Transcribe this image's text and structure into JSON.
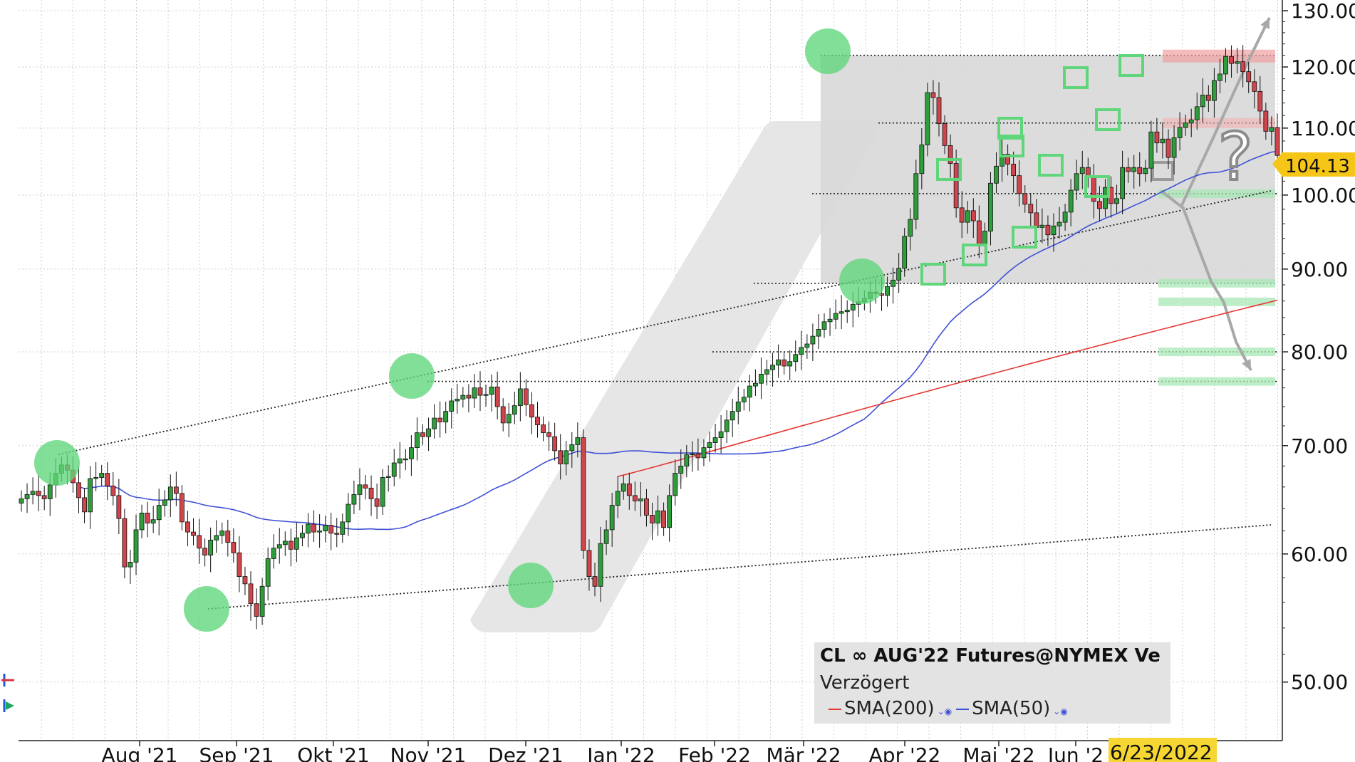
{
  "chart_data": {
    "type": "candlestick",
    "title": "CL ∞ AUG'22 Futures@NYMEX Ve",
    "subtitle": "Verzögert",
    "x_labels": [
      "Aug '21",
      "Sep '21",
      "Okt '21",
      "Nov '21",
      "Dez '21",
      "Jan '22",
      "Feb '22",
      "Mär '22",
      "Apr '22",
      "Mai '22",
      "Jun '2"
    ],
    "date_badge": "6/23/2022",
    "y_ticks": [
      "130.00",
      "120.00",
      "110.00",
      "100.00",
      "90.00",
      "80.00",
      "70.00",
      "60.00",
      "50.00"
    ],
    "y_scale": "log",
    "ylim": [
      46,
      132
    ],
    "last_price": "104.13",
    "legend": [
      {
        "name": "SMA(200)",
        "color": "#e53935"
      },
      {
        "name": "SMA(50)",
        "color": "#3f51d6"
      }
    ],
    "question_mark": "?",
    "colors": {
      "up": "#2e9e3a",
      "down": "#d0454c",
      "sma50": "#3f51d6",
      "sma200": "#e53935",
      "marker": "#5fd67a",
      "price_badge": "#f5c518",
      "date_badge": "#f5d632"
    },
    "closes": [
      64.9,
      65.3,
      65.6,
      65.2,
      64.9,
      66.2,
      67.3,
      68.1,
      67.6,
      66.4,
      65.0,
      63.7,
      66.8,
      66.9,
      67.3,
      66.1,
      65.2,
      63.1,
      58.9,
      59.3,
      62.1,
      63.6,
      62.7,
      63.0,
      64.3,
      64.8,
      66.0,
      65.4,
      62.8,
      61.9,
      61.6,
      60.5,
      59.9,
      61.2,
      61.6,
      62.0,
      61.0,
      60.1,
      58.1,
      57.5,
      55.9,
      54.9,
      57.3,
      59.6,
      60.5,
      60.8,
      61.1,
      60.4,
      61.4,
      61.8,
      62.6,
      61.9,
      62.0,
      62.5,
      61.8,
      61.7,
      62.8,
      64.4,
      65.3,
      66.2,
      65.9,
      64.9,
      64.2,
      66.9,
      67.0,
      68.3,
      68.7,
      68.7,
      69.8,
      71.3,
      70.9,
      71.7,
      72.8,
      72.4,
      73.5,
      74.6,
      74.8,
      75.2,
      74.9,
      76.0,
      75.2,
      75.3,
      76.1,
      74.0,
      72.3,
      73.2,
      74.1,
      75.9,
      74.2,
      72.9,
      72.1,
      71.3,
      70.9,
      69.5,
      68.2,
      69.5,
      70.1,
      70.8,
      60.3,
      58.1,
      57.3,
      60.9,
      62.1,
      64.3,
      65.6,
      66.3,
      65.2,
      64.7,
      64.9,
      63.4,
      62.7,
      63.8,
      62.3,
      65.2,
      67.3,
      68.0,
      69.1,
      69.2,
      68.8,
      69.8,
      70.3,
      70.8,
      71.4,
      72.6,
      73.5,
      74.5,
      75.0,
      76.2,
      76.5,
      77.5,
      78.0,
      78.5,
      79.1,
      78.4,
      78.9,
      79.7,
      80.5,
      80.9,
      81.8,
      82.6,
      83.5,
      83.8,
      84.5,
      84.7,
      84.9,
      85.6,
      85.9,
      86.3,
      87.1,
      86.9,
      86.7,
      87.8,
      88.6,
      90.1,
      94.3,
      96.6,
      103.1,
      107.4,
      115.7,
      114.9,
      110.7,
      107.3,
      104.6,
      98.2,
      96.2,
      97.8,
      96.4,
      93.1,
      95.0,
      101.7,
      104.2,
      106.0,
      104.5,
      102.8,
      100.2,
      98.7,
      97.5,
      95.5,
      95.8,
      94.5,
      95.7,
      96.2,
      97.6,
      100.7,
      103.1,
      104.0,
      102.7,
      99.1,
      98.1,
      101.1,
      98.8,
      99.5,
      104.0,
      103.4,
      104.0,
      103.1,
      103.9,
      109.4,
      107.7,
      108.3,
      105.5,
      108.5,
      110.1,
      110.8,
      111.3,
      113.4,
      115.3,
      114.4,
      117.7,
      118.8,
      121.8,
      120.6,
      120.9,
      119.2,
      117.5,
      115.9,
      112.7,
      109.5,
      110.1,
      105.8
    ]
  }
}
